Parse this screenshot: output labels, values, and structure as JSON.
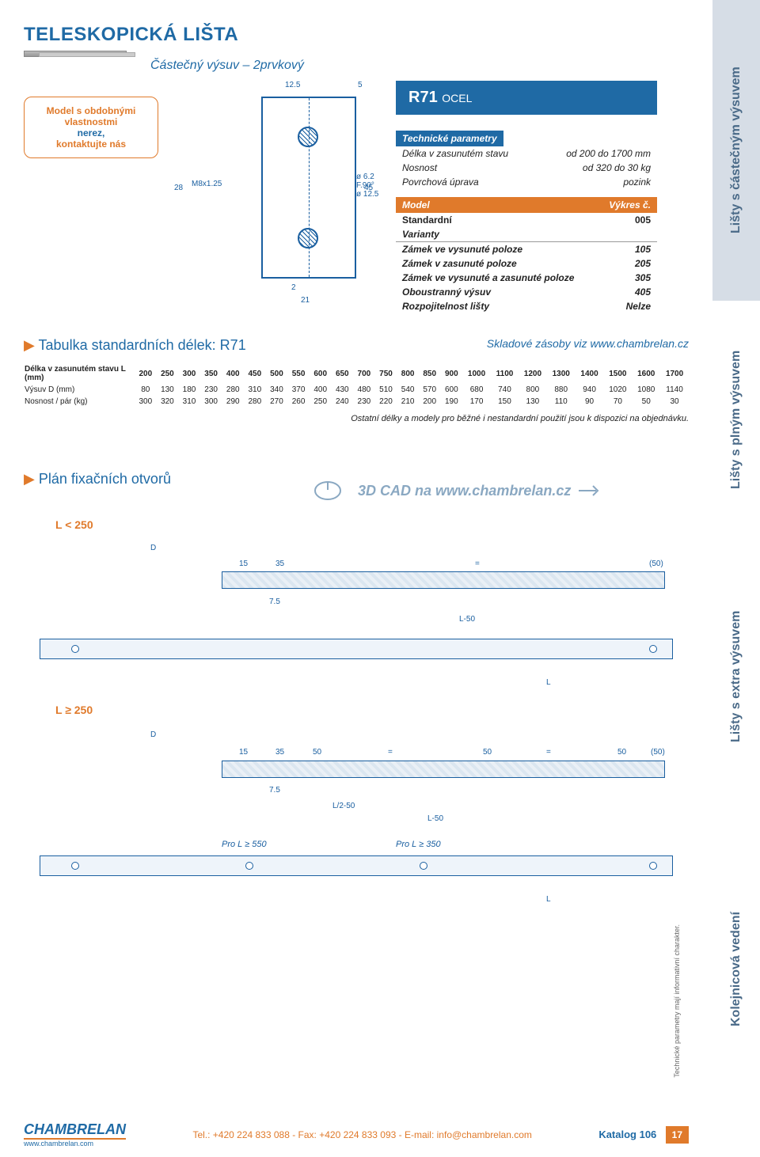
{
  "title": "TELESKOPICKÁ LIŠTA",
  "subtitle": "Částečný výsuv – 2prvkový",
  "info_badge": {
    "l1": "Model s obdobnými",
    "l2": "vlastnostmi",
    "l3": "nerez,",
    "l4": "kontaktujte nás"
  },
  "product": {
    "code": "R71",
    "material": "OCEL"
  },
  "tech_label": "Technické parametry",
  "specs": [
    {
      "k": "Délka v zasunutém stavu",
      "v": "od 200 do 1700 mm"
    },
    {
      "k": "Nosnost",
      "v": "od 320 do 30 kg"
    },
    {
      "k": "Povrchová úprava",
      "v": "pozink"
    }
  ],
  "model_hdr": {
    "k": "Model",
    "v": "Výkres č."
  },
  "standard": {
    "k": "Standardní",
    "v": "005"
  },
  "variants_label": "Varianty",
  "variants": [
    {
      "k": "Zámek ve vysunuté poloze",
      "v": "105"
    },
    {
      "k": "Zámek v zasunuté poloze",
      "v": "205"
    },
    {
      "k": "Zámek ve vysunuté a zasunuté poloze",
      "v": "305"
    },
    {
      "k": "Oboustranný výsuv",
      "v": "405"
    },
    {
      "k": "Rozpojitelnost lišty",
      "v": "Nelze"
    }
  ],
  "drawing_dims": {
    "d125": "12.5",
    "d5": "5",
    "d28": "28",
    "thread": "M8x1.25",
    "bore": "ø 6.2 F.90° ø 12.5",
    "d45": "45",
    "d2": "2",
    "d21": "21"
  },
  "table_heading": "Tabulka standardních délek: R71",
  "stock_note": "Skladové zásoby viz www.chambrelan.cz",
  "lengths": {
    "row0_label": "Délka v zasunutém stavu L (mm)",
    "row1_label": "Výsuv D (mm)",
    "row2_label": "Nosnost / pár (kg)",
    "L": [
      "200",
      "250",
      "300",
      "350",
      "400",
      "450",
      "500",
      "550",
      "600",
      "650",
      "700",
      "750",
      "800",
      "850",
      "900",
      "1000",
      "1100",
      "1200",
      "1300",
      "1400",
      "1500",
      "1600",
      "1700"
    ],
    "D": [
      "80",
      "130",
      "180",
      "230",
      "280",
      "310",
      "340",
      "370",
      "400",
      "430",
      "480",
      "510",
      "540",
      "570",
      "600",
      "680",
      "740",
      "800",
      "880",
      "940",
      "1020",
      "1080",
      "1140"
    ],
    "load": [
      "300",
      "320",
      "310",
      "300",
      "290",
      "280",
      "270",
      "260",
      "250",
      "240",
      "230",
      "220",
      "210",
      "200",
      "190",
      "170",
      "150",
      "130",
      "110",
      "90",
      "70",
      "50",
      "30"
    ]
  },
  "table_note": "Ostatní délky a modely pro běžné i nestandardní použití jsou k dispozici na objednávku.",
  "cad_banner": "3D CAD na www.chambrelan.cz",
  "plan_heading": "Plán fixačních otvorů",
  "diag1_label": "L < 250",
  "diag2_label": "L ≥ 250",
  "dims": {
    "D": "D",
    "d15": "15",
    "d35": "35",
    "d75": "7.5",
    "eq": "=",
    "d50p": "(50)",
    "L50": "L-50",
    "L": "L",
    "d50": "50",
    "L250": "L/2-50",
    "proL550": "Pro L ≥ 550",
    "proL350": "Pro L ≥ 350"
  },
  "sidebar": {
    "b1": "Lišty s částečným výsuvem",
    "b2": "Lišty s plným výsuvem",
    "b3": "Lišty s extra výsuvem",
    "b4": "Kolejnicová vedení"
  },
  "vertical_note": "Technické parametry mají informativní charakter.",
  "footer": {
    "brand": "CHAMBRELAN",
    "url": "www.chambrelan.com",
    "contact": "Tel.: +420 224 833 088 - Fax: +420 224 833 093 - E-mail: info@chambrelan.com",
    "catalog": "Katalog 106",
    "page": "17"
  },
  "colors": {
    "blue": "#1f6aa5",
    "orange": "#e07a2b",
    "bandbg": "#d6dde6",
    "draw": "#1a5fa0"
  }
}
